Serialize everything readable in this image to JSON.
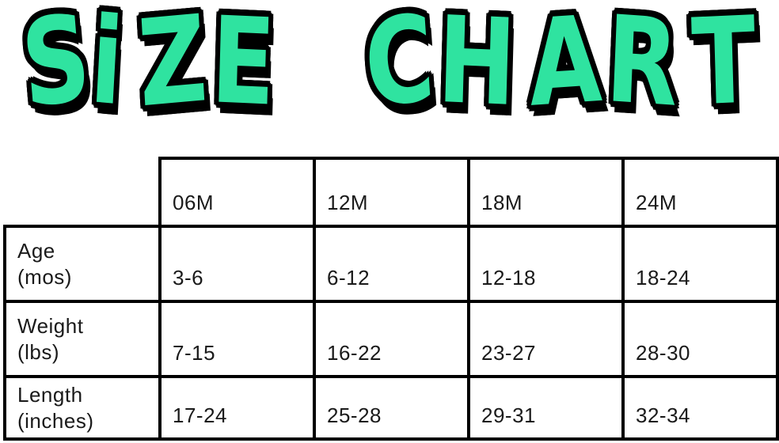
{
  "title": {
    "text": "SiZE CHART",
    "fill_color": "#2fe3a0",
    "outline_color": "#000000"
  },
  "table": {
    "column_headers": [
      "06M",
      "12M",
      "18M",
      "24M"
    ],
    "rows": [
      {
        "label_line1": "Age",
        "label_line2": "(mos)",
        "values": [
          "3-6",
          "6-12",
          "12-18",
          "18-24"
        ]
      },
      {
        "label_line1": "Weight",
        "label_line2": "(lbs)",
        "values": [
          "7-15",
          "16-22",
          "23-27",
          "28-30"
        ]
      },
      {
        "label_line1": "Length",
        "label_line2": "(inches)",
        "values": [
          "17-24",
          "25-28",
          "29-31",
          "32-34"
        ]
      }
    ]
  },
  "chart_data": {
    "type": "table",
    "title": "SIZE CHART",
    "columns": [
      "",
      "06M",
      "12M",
      "18M",
      "24M"
    ],
    "rows": [
      [
        "Age (mos)",
        "3-6",
        "6-12",
        "12-18",
        "18-24"
      ],
      [
        "Weight (lbs)",
        "7-15",
        "16-22",
        "23-27",
        "28-30"
      ],
      [
        "Length (inches)",
        "17-24",
        "25-28",
        "29-31",
        "32-34"
      ]
    ]
  }
}
